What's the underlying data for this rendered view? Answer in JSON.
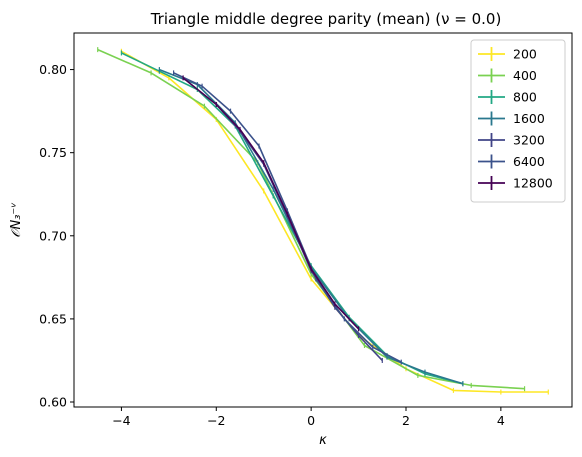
{
  "chart_data": {
    "type": "line",
    "title": "Triangle middle degree parity (mean) (ν = 0.0)",
    "xlabel": "κ",
    "ylabel": "𝒪N₃⁻ᵛ",
    "xlim": [
      -5,
      5.5
    ],
    "ylim": [
      0.597,
      0.822
    ],
    "xticks": [
      -4,
      -2,
      0,
      2,
      4
    ],
    "xtick_labels": [
      "−4",
      "−2",
      "0",
      "2",
      "4"
    ],
    "yticks": [
      0.6,
      0.65,
      0.7,
      0.75,
      0.8
    ],
    "ytick_labels": [
      "0.60",
      "0.65",
      "0.70",
      "0.75",
      "0.80"
    ],
    "legend_position": "top-right",
    "grid": false,
    "series": [
      {
        "name": "200",
        "color": "#fde725",
        "x": [
          -4.0,
          -3.0,
          -2.0,
          -1.0,
          0.0,
          1.0,
          2.0,
          3.0,
          4.0,
          5.0
        ],
        "y": [
          0.811,
          0.795,
          0.77,
          0.727,
          0.674,
          0.64,
          0.62,
          0.607,
          0.606,
          0.606
        ]
      },
      {
        "name": "400",
        "color": "#7ad151",
        "x": [
          -4.5,
          -3.375,
          -2.25,
          -1.125,
          0.0,
          1.125,
          2.25,
          3.375,
          4.5
        ],
        "y": [
          0.812,
          0.798,
          0.778,
          0.744,
          0.677,
          0.634,
          0.616,
          0.61,
          0.608
        ]
      },
      {
        "name": "800",
        "color": "#22a884",
        "x": [
          -4.0,
          -3.2,
          -2.4,
          -1.6,
          -0.8,
          0.0,
          0.8,
          1.6,
          2.4,
          3.2
        ],
        "y": [
          0.81,
          0.799,
          0.788,
          0.766,
          0.724,
          0.682,
          0.651,
          0.628,
          0.617,
          0.611
        ]
      },
      {
        "name": "1600",
        "color": "#2a788e",
        "x": [
          -3.2,
          -2.4,
          -1.6,
          -0.8,
          0.0,
          0.8,
          1.6,
          2.4,
          3.2
        ],
        "y": [
          0.8,
          0.791,
          0.768,
          0.728,
          0.681,
          0.65,
          0.627,
          0.618,
          0.611
        ]
      },
      {
        "name": "3200",
        "color": "#414487",
        "x": [
          -2.0,
          -1.5,
          -1.0,
          -0.5,
          0.0,
          0.5,
          1.0,
          1.5
        ],
        "y": [
          0.779,
          0.763,
          0.743,
          0.712,
          0.679,
          0.657,
          0.64,
          0.625
        ]
      },
      {
        "name": "6400",
        "color": "#3b528b",
        "x": [
          -2.9,
          -2.3,
          -1.7,
          -1.1,
          -0.5,
          0.1,
          0.7,
          1.3,
          1.9
        ],
        "y": [
          0.798,
          0.79,
          0.775,
          0.754,
          0.715,
          0.674,
          0.65,
          0.633,
          0.624
        ]
      },
      {
        "name": "12800",
        "color": "#440154",
        "x": [
          -2.7,
          -2.0,
          -1.5,
          -1.0,
          -0.5,
          0.0,
          0.5,
          1.0
        ],
        "y": [
          0.795,
          0.779,
          0.764,
          0.744,
          0.713,
          0.68,
          0.659,
          0.644
        ]
      }
    ]
  }
}
